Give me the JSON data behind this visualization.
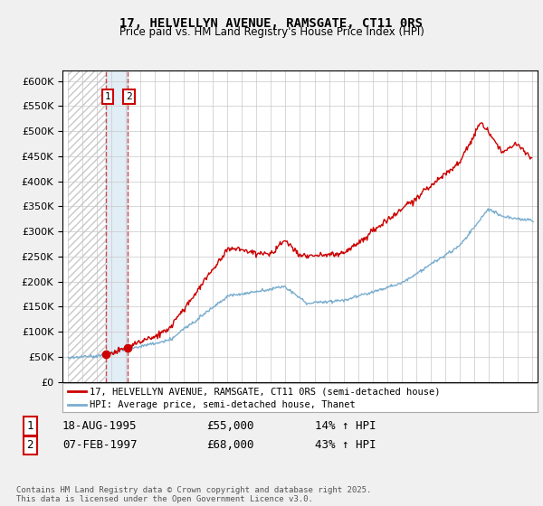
{
  "title": "17, HELVELLYN AVENUE, RAMSGATE, CT11 0RS",
  "subtitle": "Price paid vs. HM Land Registry's House Price Index (HPI)",
  "ylim": [
    0,
    620000
  ],
  "yticks": [
    0,
    50000,
    100000,
    150000,
    200000,
    250000,
    300000,
    350000,
    400000,
    450000,
    500000,
    550000,
    600000
  ],
  "background_color": "#f0f0f0",
  "legend_entry1": "17, HELVELLYN AVENUE, RAMSGATE, CT11 0RS (semi-detached house)",
  "legend_entry2": "HPI: Average price, semi-detached house, Thanet",
  "sale1_date": "18-AUG-1995",
  "sale1_price": "£55,000",
  "sale1_hpi": "14% ↑ HPI",
  "sale2_date": "07-FEB-1997",
  "sale2_price": "£68,000",
  "sale2_hpi": "43% ↑ HPI",
  "copyright_text": "Contains HM Land Registry data © Crown copyright and database right 2025.\nThis data is licensed under the Open Government Licence v3.0.",
  "red_line_color": "#cc0000",
  "blue_line_color": "#7aadcf",
  "sale1_year": 1995.625,
  "sale2_year": 1997.09,
  "sale1_value": 55000,
  "sale2_value": 68000,
  "xmin": 1993,
  "xmax": 2025
}
